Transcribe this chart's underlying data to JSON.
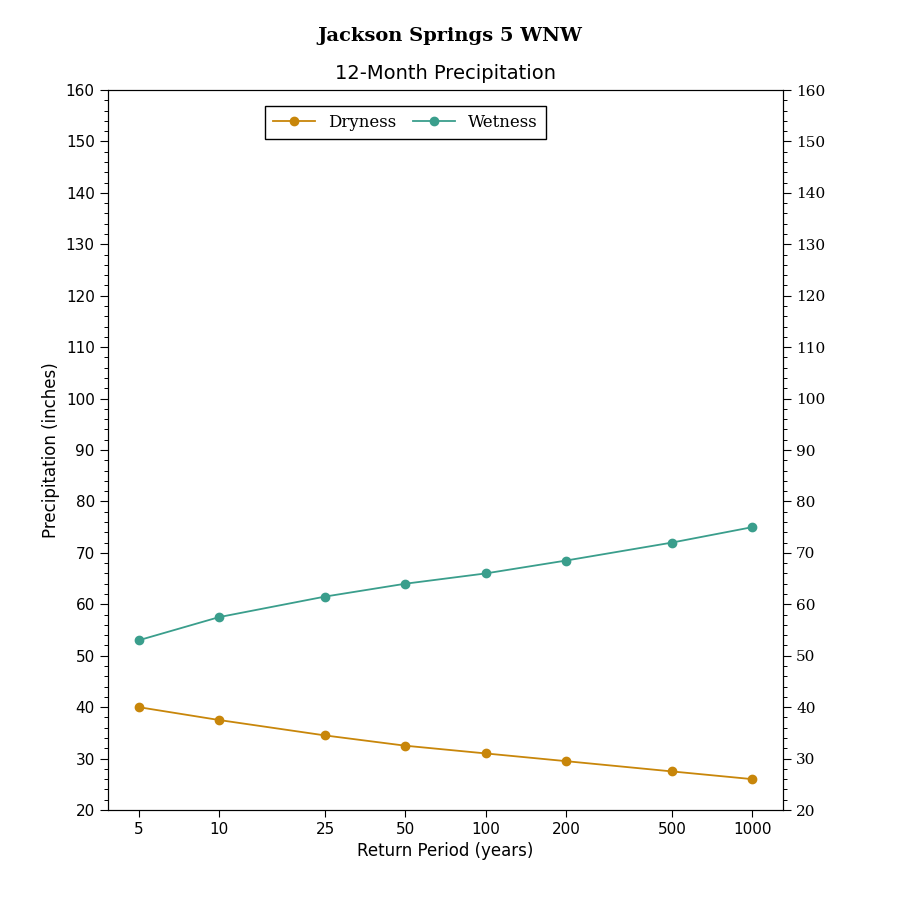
{
  "title_line1": "Jackson Springs 5 WNW",
  "title_line2": "12-Month Precipitation",
  "xlabel": "Return Period (years)",
  "ylabel": "Precipitation (inches)",
  "x_values": [
    5,
    10,
    25,
    50,
    100,
    200,
    500,
    1000
  ],
  "dryness_values": [
    40.0,
    37.5,
    34.5,
    32.5,
    31.0,
    29.5,
    27.5,
    26.0
  ],
  "wetness_values": [
    53.0,
    57.5,
    61.5,
    64.0,
    66.0,
    68.5,
    72.0,
    75.0
  ],
  "dryness_color": "#C8860A",
  "wetness_color": "#3A9E8C",
  "ylim": [
    20,
    160
  ],
  "yticks": [
    20,
    30,
    40,
    50,
    60,
    70,
    80,
    90,
    100,
    110,
    120,
    130,
    140,
    150,
    160
  ],
  "background_color": "#FFFFFF",
  "plot_bg_color": "#FFFFFF",
  "legend_labels": [
    "Dryness",
    "Wetness"
  ],
  "title_fontsize": 14,
  "label_fontsize": 12,
  "tick_fontsize": 11
}
